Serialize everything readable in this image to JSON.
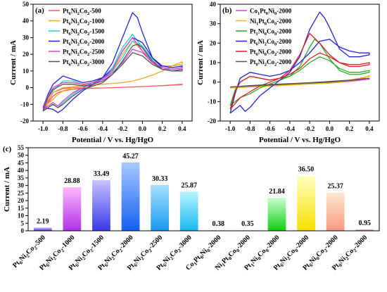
{
  "chart_data": [
    {
      "panel_label": "(a)",
      "type": "line",
      "xlabel": "Potential / V vs. Hg/HgO",
      "ylabel": "Current / mA",
      "xlim": [
        -1.1,
        0.5
      ],
      "ylim": [
        -20,
        50
      ],
      "xticks": [
        -1.0,
        -0.8,
        -0.6,
        -0.4,
        -0.2,
        0.0,
        0.2,
        0.4
      ],
      "yticks": [
        -20,
        -10,
        0,
        10,
        20,
        30,
        40,
        50
      ],
      "xtick_labels": [
        "-1.0",
        "-0.8",
        "-0.6",
        "-0.4",
        "-0.2",
        "0.0",
        "0.2",
        "0.4"
      ],
      "ytick_labels": [
        "-20",
        "-10",
        "0",
        "10",
        "20",
        "30",
        "40",
        "50"
      ],
      "grid": false,
      "legend_position": "top-left",
      "legend": [
        "Pt6Ni2Co2-500",
        "Pt6Ni2Co2-1000",
        "Pt6Ni2Co2-1500",
        "Pt6Ni2Co2-2000",
        "Pt6Ni2Co2-2500",
        "Pt6Ni2Co2-3000"
      ],
      "series": [
        {
          "name": "Pt6Ni2Co2-500",
          "color": "#f25b5b",
          "x": [
            -1.0,
            -0.9,
            -0.8,
            -0.7,
            -0.6,
            -0.5,
            -0.4,
            -0.3,
            -0.2,
            -0.1,
            0.0,
            0.1,
            0.2,
            0.3,
            0.4,
            0.4,
            0.3,
            0.2,
            0.1,
            0.0,
            -0.1,
            -0.2,
            -0.3,
            -0.4,
            -0.5,
            -0.6,
            -0.7,
            -0.8,
            -0.85,
            -0.9,
            -1.0
          ],
          "y": [
            -14,
            -3,
            -0.5,
            0.0,
            -0.2,
            -0.3,
            -0.2,
            0.0,
            0.2,
            0.4,
            0.6,
            0.9,
            1.2,
            1.6,
            2.0,
            1.8,
            1.5,
            1.2,
            0.9,
            0.6,
            0.4,
            0.2,
            0.0,
            -0.2,
            -0.3,
            -0.5,
            -1.0,
            -2.0,
            -3.0,
            -5.0,
            -14
          ]
        },
        {
          "name": "Pt6Ni2Co2-1000",
          "color": "#f5a623",
          "x": [
            -1.0,
            -0.9,
            -0.8,
            -0.7,
            -0.6,
            -0.5,
            -0.4,
            -0.3,
            -0.2,
            -0.1,
            0.0,
            0.1,
            0.2,
            0.3,
            0.4,
            0.4,
            0.3,
            0.2,
            0.1,
            0.0,
            -0.1,
            -0.2,
            -0.3,
            -0.4,
            -0.5,
            -0.6,
            -0.7,
            -0.8,
            -0.85,
            -0.9,
            -1.0
          ],
          "y": [
            -12,
            -3,
            0,
            0.5,
            1.0,
            1.5,
            2.0,
            2.5,
            3.0,
            4.0,
            5.5,
            7.5,
            10,
            13,
            15.5,
            14,
            13,
            13,
            16,
            22,
            28,
            20,
            10,
            5,
            3,
            1.5,
            0,
            -2,
            -4,
            -7,
            -12
          ]
        },
        {
          "name": "Pt6Ni2Co2-1500",
          "color": "#26d0c8",
          "x": [
            -1.0,
            -0.95,
            -0.9,
            -0.8,
            -0.7,
            -0.6,
            -0.5,
            -0.4,
            -0.3,
            -0.2,
            -0.1,
            0.0,
            0.1,
            0.2,
            0.3,
            0.4,
            0.4,
            0.3,
            0.2,
            0.1,
            0.0,
            -0.1,
            -0.2,
            -0.3,
            -0.4,
            -0.5,
            -0.6,
            -0.7,
            -0.8,
            -0.85,
            -0.9,
            -1.0
          ],
          "y": [
            -14,
            -6,
            -2,
            4,
            4,
            2,
            3,
            5,
            10,
            18,
            28,
            25,
            17,
            13,
            12,
            13,
            12,
            11,
            11,
            15,
            24,
            32,
            24,
            12,
            6,
            3,
            0,
            -4,
            -9,
            -12,
            -10,
            -14
          ]
        },
        {
          "name": "Pt6Ni2Co2-2000",
          "color": "#2424e0",
          "x": [
            -1.0,
            -0.95,
            -0.9,
            -0.8,
            -0.7,
            -0.6,
            -0.5,
            -0.4,
            -0.3,
            -0.2,
            -0.1,
            0.0,
            0.1,
            0.2,
            0.3,
            0.4,
            0.4,
            0.3,
            0.2,
            0.1,
            0.0,
            -0.05,
            -0.1,
            -0.2,
            -0.3,
            -0.4,
            -0.5,
            -0.6,
            -0.7,
            -0.8,
            -0.85,
            -0.9,
            -1.0
          ],
          "y": [
            -12,
            -4,
            2,
            7,
            5,
            3,
            4,
            6,
            11,
            22,
            30,
            27,
            18,
            13,
            12,
            13,
            12,
            11,
            12,
            18,
            33,
            42,
            45,
            30,
            15,
            6,
            2,
            -2,
            -7,
            -13,
            -15,
            -13,
            -12
          ]
        },
        {
          "name": "Pt6Ni2Co2-2500",
          "color": "#e040d8",
          "x": [
            -1.0,
            -0.95,
            -0.9,
            -0.8,
            -0.7,
            -0.6,
            -0.5,
            -0.4,
            -0.3,
            -0.2,
            -0.1,
            0.0,
            0.1,
            0.2,
            0.3,
            0.4,
            0.4,
            0.3,
            0.2,
            0.1,
            0.0,
            -0.1,
            -0.2,
            -0.3,
            -0.4,
            -0.5,
            -0.6,
            -0.7,
            -0.8,
            -0.85,
            -0.9,
            -1.0
          ],
          "y": [
            -13,
            -5,
            0,
            3,
            3,
            2,
            3,
            5,
            9,
            15,
            23,
            21,
            15,
            12,
            11,
            12,
            11,
            10,
            11,
            15,
            22,
            30,
            22,
            11,
            5,
            2,
            0,
            -3,
            -8,
            -11,
            -9,
            -13
          ]
        },
        {
          "name": "Pt6Ni2Co2-3000",
          "color": "#555555",
          "x": [
            -1.0,
            -0.95,
            -0.9,
            -0.8,
            -0.7,
            -0.6,
            -0.5,
            -0.4,
            -0.3,
            -0.2,
            -0.1,
            0.0,
            0.1,
            0.2,
            0.3,
            0.4,
            0.4,
            0.3,
            0.2,
            0.1,
            0.0,
            -0.05,
            -0.1,
            -0.2,
            -0.3,
            -0.4,
            -0.5,
            -0.6,
            -0.7,
            -0.8,
            -0.85,
            -0.9,
            -1.0
          ],
          "y": [
            -14,
            -6,
            -1,
            2,
            2,
            1,
            2,
            4,
            8,
            14,
            21,
            19,
            14,
            11,
            10,
            11,
            10,
            10,
            11,
            16,
            24,
            26,
            25,
            16,
            8,
            3,
            1,
            -1,
            -5,
            -10,
            -12,
            -10,
            -14
          ]
        }
      ]
    },
    {
      "panel_label": "(b)",
      "type": "line",
      "xlabel": "Potential / V vs. Hg/HgO",
      "ylabel": "Current / mA",
      "xlim": [
        -1.1,
        0.5
      ],
      "ylim": [
        -20,
        40
      ],
      "xticks": [
        -1.0,
        -0.8,
        -0.6,
        -0.4,
        -0.2,
        0.0,
        0.2,
        0.4
      ],
      "yticks": [
        -20,
        -10,
        0,
        10,
        20,
        30,
        40
      ],
      "xtick_labels": [
        "-1.0",
        "-0.8",
        "-0.6",
        "-0.4",
        "-0.2",
        "0.0",
        "0.2",
        "0.4"
      ],
      "ytick_labels": [
        "-20",
        "-10",
        "0",
        "10",
        "20",
        "30",
        "40"
      ],
      "grid": false,
      "legend_position": "top-left",
      "legend": [
        "Co1Pt0Ni0-2000",
        "Ni1Pt0Co0-2000",
        "Pt1Ni0Co0-2000",
        "Pt6Ni2Co0-2000",
        "Pt6Ni0Co2-2000",
        "Pt0Ni2Co2-2000"
      ],
      "series": [
        {
          "name": "Co1Pt0Ni0-2000",
          "color": "#e040d8",
          "x": [
            -1.0,
            -0.8,
            -0.6,
            -0.4,
            -0.2,
            0.0,
            0.2,
            0.4,
            0.4,
            0.2,
            0.0,
            -0.2,
            -0.4,
            -0.6,
            -0.8,
            -1.0
          ],
          "y": [
            -3,
            -2.5,
            -2,
            -1.5,
            -1,
            -0.5,
            0.3,
            1.5,
            1.5,
            0.5,
            -0.3,
            -0.8,
            -1.2,
            -1.6,
            -2.2,
            -3
          ]
        },
        {
          "name": "Ni1Pt0Co0-2000",
          "color": "#f5b800",
          "x": [
            -1.0,
            -0.8,
            -0.6,
            -0.4,
            -0.2,
            0.0,
            0.2,
            0.35,
            0.4,
            0.4,
            0.3,
            0.2,
            0.0,
            -0.2,
            -0.4,
            -0.6,
            -0.8,
            -1.0
          ],
          "y": [
            -3,
            -2.5,
            -2,
            -1.5,
            -1.0,
            -0.5,
            0.5,
            2,
            3.5,
            3,
            2,
            1,
            0,
            -0.8,
            -1.2,
            -1.6,
            -2.2,
            -3
          ]
        },
        {
          "name": "Pt1Ni0Co0-2000",
          "color": "#22b022",
          "x": [
            -1.0,
            -0.95,
            -0.9,
            -0.8,
            -0.7,
            -0.6,
            -0.5,
            -0.4,
            -0.3,
            -0.2,
            -0.1,
            0.0,
            0.1,
            0.2,
            0.3,
            0.4,
            0.4,
            0.3,
            0.2,
            0.1,
            0.0,
            -0.1,
            -0.15,
            -0.2,
            -0.3,
            -0.4,
            -0.5,
            -0.6,
            -0.7,
            -0.8,
            -0.9,
            -1.0
          ],
          "y": [
            -12,
            -4,
            0,
            3,
            2,
            1,
            2,
            3,
            6,
            10,
            13,
            11,
            7,
            5,
            5,
            6,
            5,
            4,
            4,
            6,
            12,
            20,
            22,
            18,
            8,
            3,
            1,
            -1,
            -3,
            -6,
            -8,
            -12
          ]
        },
        {
          "name": "Pt6Ni2Co0-2000",
          "color": "#2424e0",
          "x": [
            -1.0,
            -0.95,
            -0.9,
            -0.8,
            -0.7,
            -0.6,
            -0.5,
            -0.4,
            -0.3,
            -0.2,
            -0.1,
            0.0,
            0.1,
            0.2,
            0.3,
            0.4,
            0.4,
            0.3,
            0.2,
            0.1,
            0.0,
            -0.05,
            -0.1,
            -0.2,
            -0.3,
            -0.4,
            -0.5,
            -0.6,
            -0.7,
            -0.8,
            -0.85,
            -0.9,
            -1.0
          ],
          "y": [
            -16,
            -6,
            2,
            5,
            4,
            3,
            4,
            6,
            10,
            15,
            21,
            22,
            18,
            16,
            15,
            15,
            14,
            13,
            13,
            17,
            28,
            33,
            36,
            27,
            13,
            5,
            1,
            -3,
            -7,
            -13,
            -15,
            -12,
            -16
          ]
        },
        {
          "name": "Pt6Ni0Co2-2000",
          "color": "#e02020",
          "x": [
            -1.0,
            -0.95,
            -0.9,
            -0.8,
            -0.7,
            -0.6,
            -0.5,
            -0.4,
            -0.3,
            -0.2,
            -0.1,
            0.0,
            0.1,
            0.2,
            0.3,
            0.4,
            0.4,
            0.3,
            0.2,
            0.1,
            0.0,
            -0.1,
            -0.2,
            -0.3,
            -0.4,
            -0.5,
            -0.6,
            -0.7,
            -0.8,
            -0.9,
            -1.0
          ],
          "y": [
            -14,
            -5,
            0,
            3,
            2,
            1,
            2,
            4,
            7,
            12,
            15,
            13,
            10,
            9,
            9,
            10,
            9,
            8,
            8,
            10,
            14,
            20,
            25,
            14,
            6,
            2,
            0,
            -2,
            -5,
            -8,
            -14
          ]
        },
        {
          "name": "Pt0Ni2Co2-2000",
          "color": "#555555",
          "x": [
            -1.0,
            -0.8,
            -0.6,
            -0.4,
            -0.2,
            0.0,
            0.2,
            0.4,
            0.4,
            0.2,
            0.0,
            -0.2,
            -0.4,
            -0.6,
            -0.8,
            -1.0
          ],
          "y": [
            -2.5,
            -2,
            -1.5,
            -1,
            -0.5,
            0,
            0.8,
            2,
            2,
            1,
            0.3,
            -0.3,
            -0.8,
            -1.2,
            -1.8,
            -2.5
          ]
        }
      ]
    },
    {
      "panel_label": "(c)",
      "type": "bar",
      "ylabel": "Current / mA",
      "ylim": [
        0,
        55
      ],
      "yticks": [
        0,
        5,
        10,
        15,
        20,
        25,
        30,
        35,
        40,
        45,
        50,
        55
      ],
      "ytick_labels": [
        "0",
        "5",
        "10",
        "15",
        "20",
        "25",
        "30",
        "35",
        "40",
        "45",
        "50",
        "55"
      ],
      "grid": false,
      "categories": [
        "Pt6Ni2Co2-500",
        "Pt6Ni2Co2-1000",
        "Pt6Ni2Co2-1500",
        "Pt6Ni2Co2-2000",
        "Pt6Ni2Co2-2500",
        "Pt6Ni2Co2-3000",
        "Co1Pt0Ni0-2000",
        "Ni1Pt0Co0-2000",
        "Pt1Ni0Co0-2000",
        "Pt6Ni2Co0-2000",
        "Pt6Ni0Co2-2000",
        "Pt0Ni2Co2-2000"
      ],
      "values": [
        2.19,
        28.88,
        33.49,
        45.27,
        30.33,
        25.87,
        0.38,
        0.35,
        21.84,
        36.5,
        25.37,
        0.95
      ],
      "value_labels": [
        "2.19",
        "28.88",
        "33.49",
        "45.27",
        "30.33",
        "25.87",
        "0.38",
        "0.35",
        "21.84",
        "36.50",
        "25.37",
        "0.95"
      ],
      "colors": [
        [
          "#d8c8ff",
          "#5a2ad8"
        ],
        [
          "#ffb8ff",
          "#b030e8"
        ],
        [
          "#c8c0ff",
          "#3838e8"
        ],
        [
          "#a8c8ff",
          "#1060f0"
        ],
        [
          "#a8e0ff",
          "#1898f0"
        ],
        [
          "#b8f4ff",
          "#18b8f0"
        ],
        [
          "#d8fff0",
          "#40d890"
        ],
        [
          "#e8fff0",
          "#70e0a0"
        ],
        [
          "#c8ffd0",
          "#10d010"
        ],
        [
          "#ffffc0",
          "#f8e000"
        ],
        [
          "#ffe8d0",
          "#f89880"
        ],
        [
          "#ffe0e0",
          "#e05050"
        ]
      ]
    }
  ]
}
